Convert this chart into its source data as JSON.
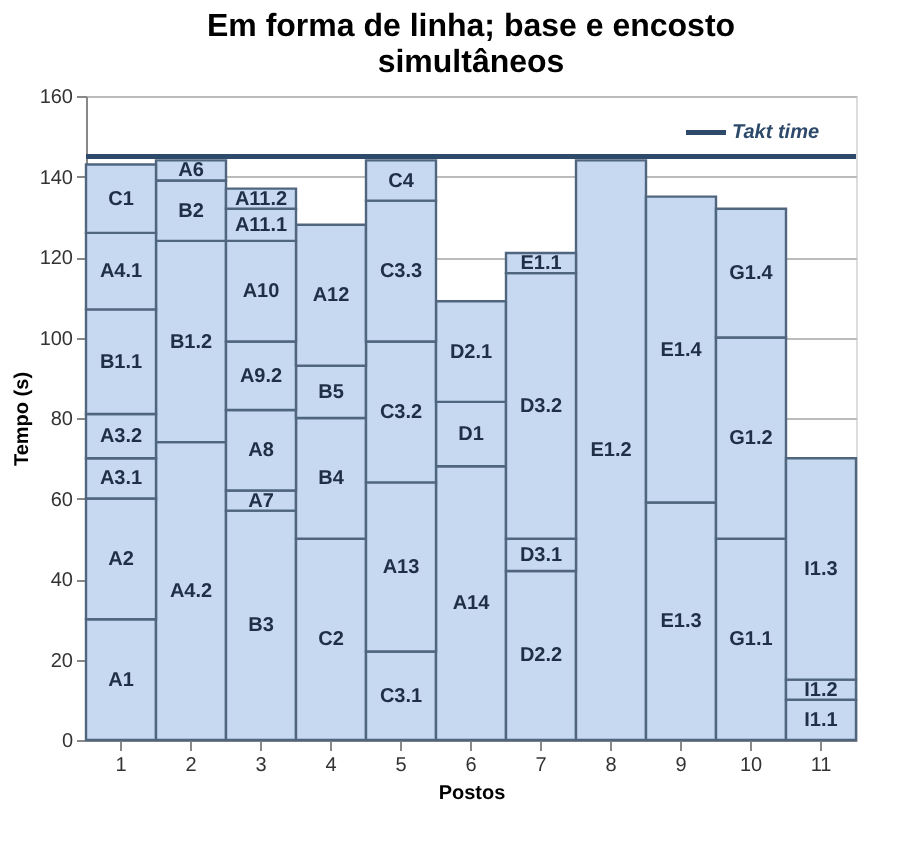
{
  "chart_data": {
    "type": "bar",
    "stacked": true,
    "title": "Em forma de linha; base e encosto simultâneos",
    "xlabel": "Postos",
    "ylabel": "Tempo (s)",
    "categories": [
      "1",
      "2",
      "3",
      "4",
      "5",
      "6",
      "7",
      "8",
      "9",
      "10",
      "11"
    ],
    "series": [
      {
        "color": "#c6d9f0",
        "values": [
          30,
          74,
          57,
          50,
          22,
          68,
          42,
          144,
          59,
          50,
          10
        ],
        "value_labels": [
          "A1",
          "A4.2",
          "B3",
          "C2",
          "C3.1",
          "A14",
          "D2.2",
          "E1.2",
          "E1.3",
          "G1.1",
          "I1.1"
        ]
      },
      {
        "color": "#c6d9f0",
        "values": [
          30,
          50,
          5,
          30,
          42,
          16,
          8,
          null,
          76,
          50,
          5
        ],
        "value_labels": [
          "A2",
          "B1.2",
          "A7",
          "B4",
          "A13",
          "D1",
          "D3.1",
          null,
          "E1.4",
          "G1.2",
          "I1.2"
        ]
      },
      {
        "color": "#c6d9f0",
        "values": [
          10,
          15,
          20,
          13,
          35,
          25,
          66,
          null,
          null,
          32,
          55
        ],
        "value_labels": [
          "A3.1",
          "B2",
          "A8",
          "B5",
          "C3.2",
          "D2.1",
          "D3.2",
          null,
          null,
          "G1.4",
          "I1.3"
        ]
      },
      {
        "color": "#c6d9f0",
        "values": [
          11,
          5,
          17,
          35,
          35,
          null,
          5,
          null,
          null,
          null,
          null
        ],
        "value_labels": [
          "A3.2",
          "A6",
          "A9.2",
          "A12",
          "C3.3",
          null,
          "E1.1",
          null,
          null,
          null,
          null
        ]
      },
      {
        "color": "#c6d9f0",
        "values": [
          26,
          null,
          25,
          null,
          10,
          null,
          null,
          null,
          null,
          null,
          null
        ],
        "value_labels": [
          "B1.1",
          null,
          "A10",
          null,
          "C4",
          null,
          null,
          null,
          null,
          null,
          null
        ]
      },
      {
        "color": "#c6d9f0",
        "values": [
          19,
          null,
          8,
          null,
          null,
          null,
          null,
          null,
          null,
          null,
          null
        ],
        "value_labels": [
          "A4.1",
          null,
          "A11.1",
          null,
          null,
          null,
          null,
          null,
          null,
          null,
          null
        ]
      },
      {
        "color": "#c6d9f0",
        "values": [
          17,
          null,
          5,
          null,
          null,
          null,
          null,
          null,
          null,
          null,
          null
        ],
        "value_labels": [
          "C1",
          null,
          "A11.2",
          null,
          null,
          null,
          null,
          null,
          null,
          null,
          null
        ]
      }
    ],
    "ref_lines": [
      {
        "axis": "y",
        "value": 145,
        "label": "Takt time",
        "color": "#2e4a6b"
      }
    ],
    "ylim": [
      0,
      160
    ],
    "yticks": [
      0,
      20,
      40,
      60,
      80,
      100,
      120,
      140,
      160
    ],
    "grid": "y"
  }
}
